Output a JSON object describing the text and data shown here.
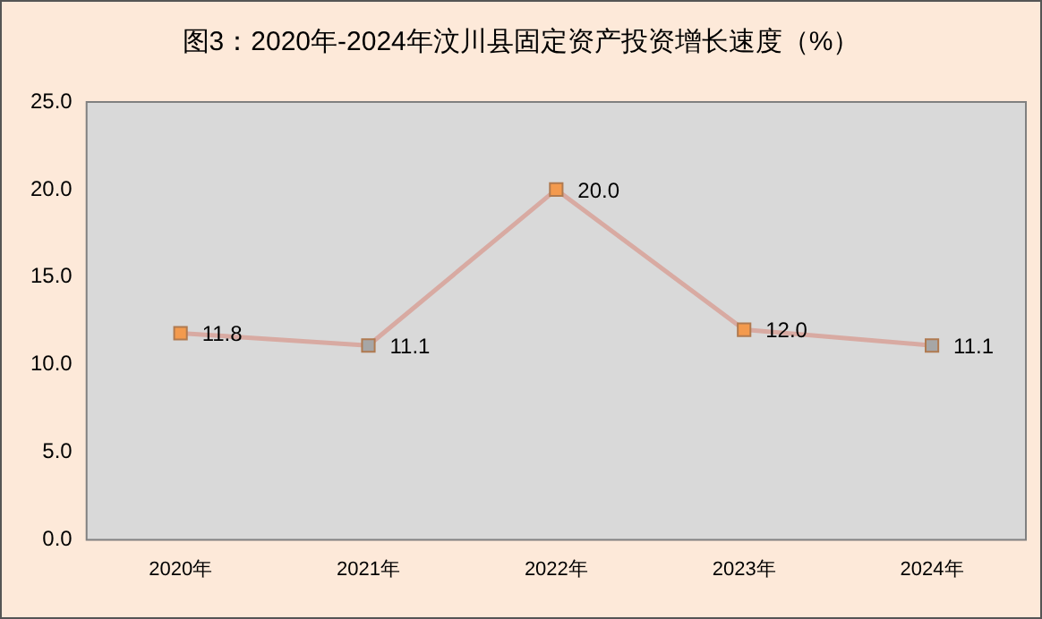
{
  "chart_data": {
    "type": "line",
    "title": "图3：2020年-2024年汶川县固定资产投资增长速度（%）",
    "categories": [
      "2020年",
      "2021年",
      "2022年",
      "2023年",
      "2024年"
    ],
    "series": [
      {
        "color": "#d8aaa2",
        "values": [
          11.8,
          11.1,
          20.0,
          12.0,
          11.1
        ],
        "value_labels": [
          "11.8",
          "11.1",
          "20.0",
          "12.0",
          "11.1"
        ],
        "colors": [
          "#f39a4e",
          "#a6a6a6",
          "#f39a4e",
          "#f39a4e",
          "#a6a6a6"
        ]
      }
    ],
    "ylim": [
      0,
      25
    ],
    "yticks": [
      {
        "value": 0,
        "label": "0.0"
      },
      {
        "value": 5,
        "label": "5.0"
      },
      {
        "value": 10,
        "label": "10.0"
      },
      {
        "value": 15,
        "label": "15.0"
      },
      {
        "value": 20,
        "label": "20.0"
      },
      {
        "value": 25,
        "label": "25.0"
      }
    ],
    "grid": false,
    "legend": false,
    "marker": "square",
    "line_style": "solid"
  }
}
